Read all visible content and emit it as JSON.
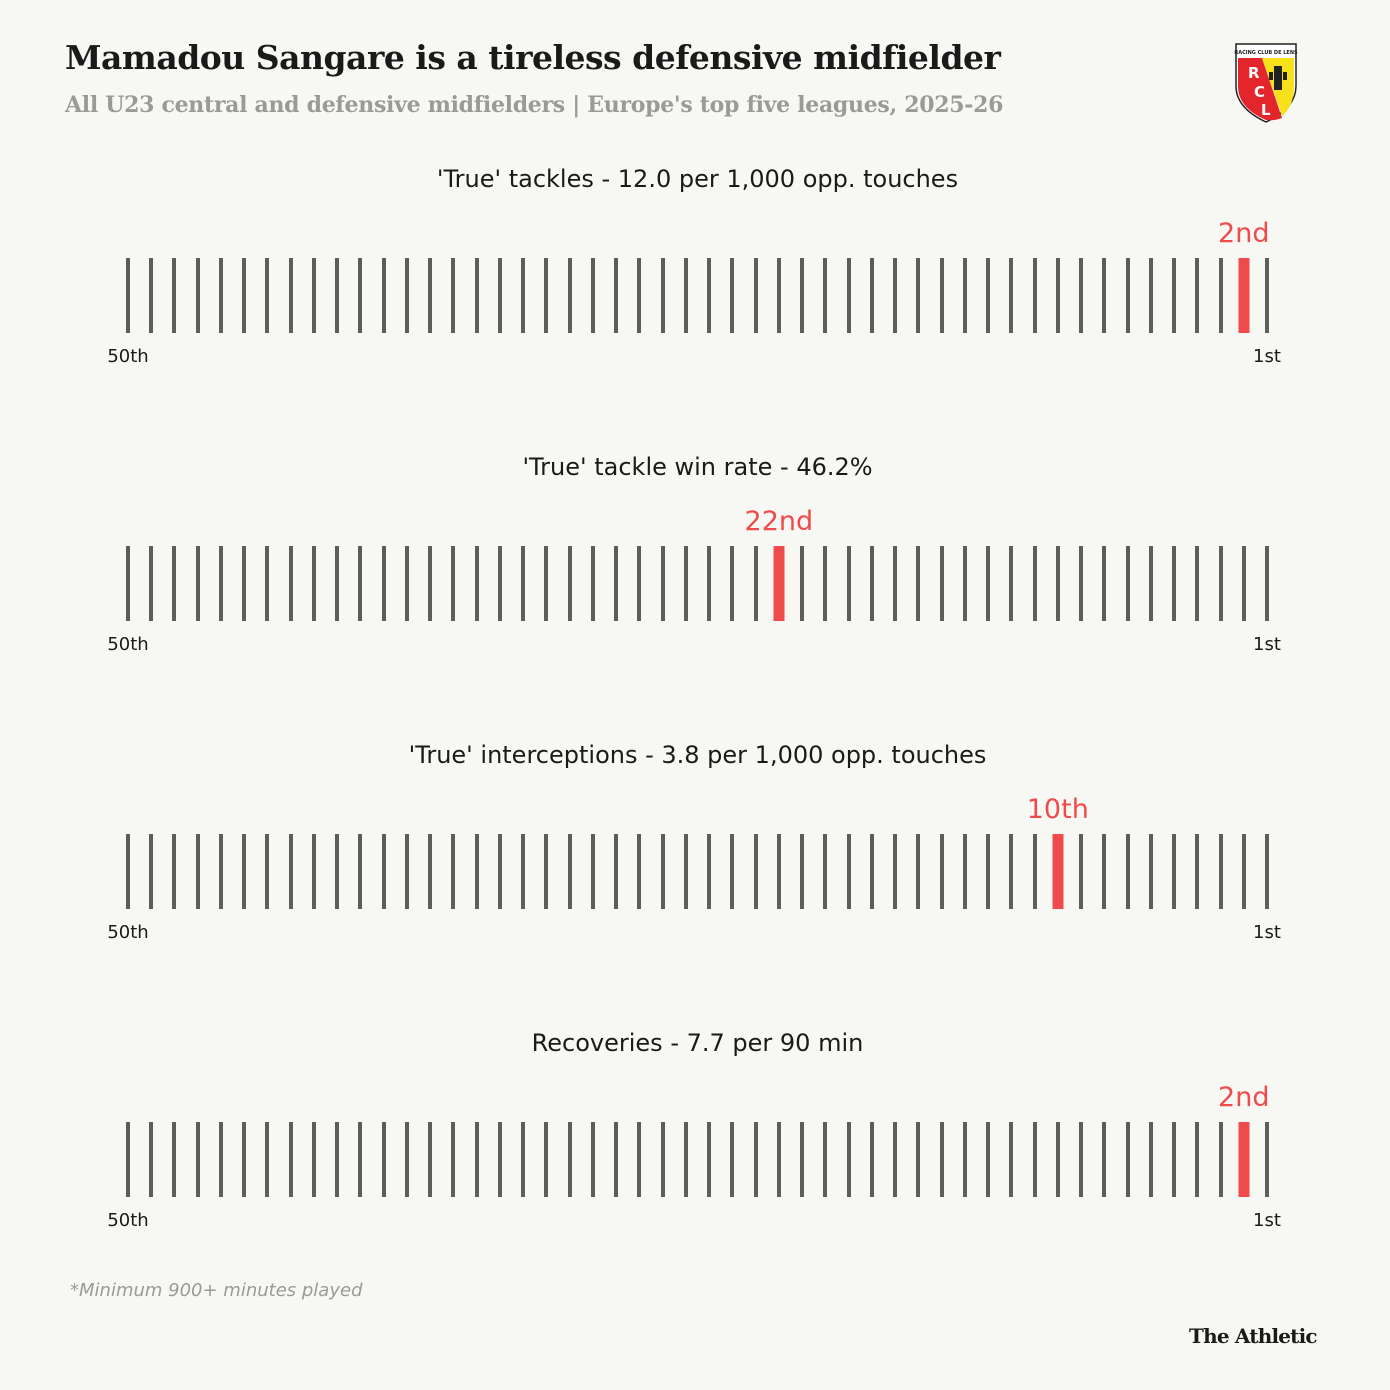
{
  "title": "Mamadou Sangare is a tireless defensive midfielder",
  "subtitle": "All U23 central and defensive midfielders | Europe's top five leagues, 2025-26",
  "logo": {
    "text": "RACING CLUB DE LENS",
    "letters": "RCL",
    "colors": [
      "#e3262b",
      "#f7e11a"
    ]
  },
  "chart_data": [
    {
      "type": "rank-strip",
      "title": "'True' tackles - 12.0 per 1,000 opp. touches",
      "total": 50,
      "rank": 2,
      "rank_label": "2nd",
      "left_label": "50th",
      "right_label": "1st"
    },
    {
      "type": "rank-strip",
      "title": "'True' tackle win rate - 46.2%",
      "total": 50,
      "rank": 22,
      "rank_label": "22nd",
      "left_label": "50th",
      "right_label": "1st"
    },
    {
      "type": "rank-strip",
      "title": "'True' interceptions - 3.8 per 1,000 opp. touches",
      "total": 50,
      "rank": 10,
      "rank_label": "10th",
      "left_label": "50th",
      "right_label": "1st"
    },
    {
      "type": "rank-strip",
      "title": "Recoveries - 7.7 per 90 min",
      "total": 50,
      "rank": 2,
      "rank_label": "2nd",
      "left_label": "50th",
      "right_label": "1st"
    }
  ],
  "colors": {
    "highlight": "#f04b4c",
    "tick": "#5e5d5a",
    "background": "#f7f7f3"
  },
  "footnote": "*Minimum 900+ minutes played",
  "brand": "The Athletic"
}
